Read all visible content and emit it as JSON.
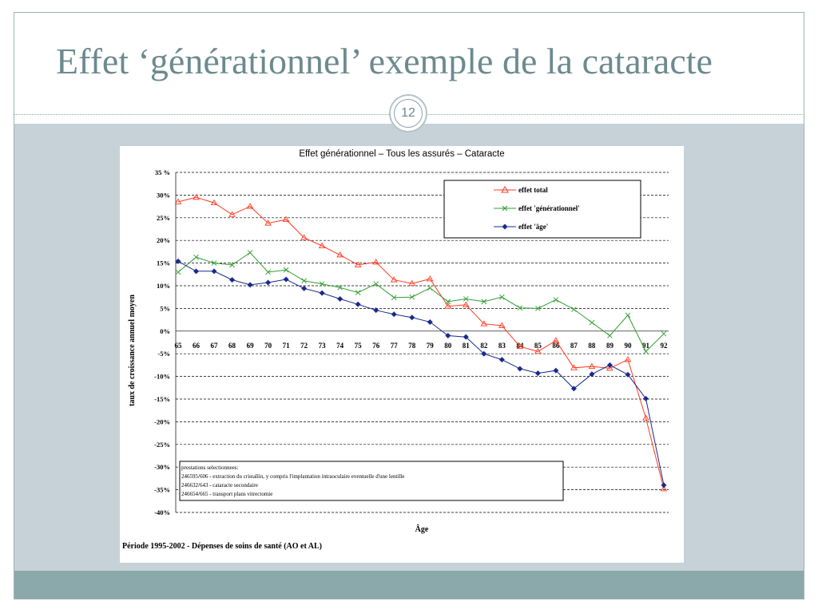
{
  "slide": {
    "title": "Effet ‘générationnel’ exemple de la cataracte",
    "page_number": "12"
  },
  "colors": {
    "title": "#6c8a8f",
    "panel": "#c7d2d8",
    "footer": "#8ba9aa",
    "series_total": "#ff3b1f",
    "series_gen": "#2f9e2f",
    "series_age": "#1a2a8c"
  },
  "chart_data": {
    "type": "line",
    "title": "Effet générationnel – Tous les assurés – Cataracte",
    "xlabel": "Âge",
    "ylabel": "taux de croissance annuel moyen",
    "x": [
      65,
      66,
      67,
      68,
      69,
      70,
      71,
      72,
      73,
      74,
      75,
      76,
      77,
      78,
      79,
      80,
      81,
      82,
      83,
      84,
      85,
      86,
      87,
      88,
      89,
      90,
      91,
      92
    ],
    "ylim": [
      -40,
      35
    ],
    "yticks": [
      "35 %",
      "30%",
      "25%",
      "20%",
      "15%",
      "10%",
      "5%",
      "0%",
      "-5%",
      "-10%",
      "-15%",
      "-20%",
      "-25%",
      "-30%",
      "-35%",
      "-40%"
    ],
    "grid": "dashed horizontal",
    "legend": "top-right",
    "series": [
      {
        "name": "effet total",
        "marker": "triangle",
        "values": [
          28.5,
          29.5,
          28.3,
          25.7,
          27.5,
          23.8,
          24.6,
          20.6,
          18.8,
          16.8,
          14.6,
          15.2,
          11.3,
          10.5,
          11.5,
          5.5,
          5.8,
          1.6,
          1.2,
          -3.4,
          -4.5,
          -2.1,
          -8.1,
          -7.8,
          -8.2,
          -6.3,
          -19.2,
          -34.8
        ]
      },
      {
        "name": "effet 'générationnel'",
        "marker": "x",
        "values": [
          13.0,
          16.3,
          15.0,
          14.6,
          17.3,
          13.0,
          13.5,
          11.1,
          10.4,
          9.6,
          8.5,
          10.4,
          7.4,
          7.5,
          9.5,
          6.5,
          7.1,
          6.5,
          7.5,
          5.1,
          5.0,
          6.9,
          4.8,
          1.9,
          -1.0,
          3.5,
          -4.5,
          -0.6
        ]
      },
      {
        "name": "effet 'âge'",
        "marker": "diamond",
        "values": [
          15.4,
          13.2,
          13.2,
          11.3,
          10.2,
          10.7,
          11.4,
          9.4,
          8.4,
          7.1,
          5.9,
          4.6,
          3.7,
          3.0,
          2.0,
          -1.0,
          -1.3,
          -5.0,
          -6.3,
          -8.3,
          -9.3,
          -8.7,
          -12.7,
          -9.5,
          -7.5,
          -9.6,
          -14.9,
          -34.0
        ]
      }
    ],
    "annotation_box": [
      "prestations selectionnees:",
      "246595/606 - extraction du cristallin, y compris l'implantation intraoculaire eventuelle d'une lentille",
      "246632/643 - cataracte secondaire",
      "246654/665 - transport plans vitrectomie"
    ],
    "footnote": "Période 1995-2002 - Dépenses de soins de santé (AO et AL)"
  }
}
